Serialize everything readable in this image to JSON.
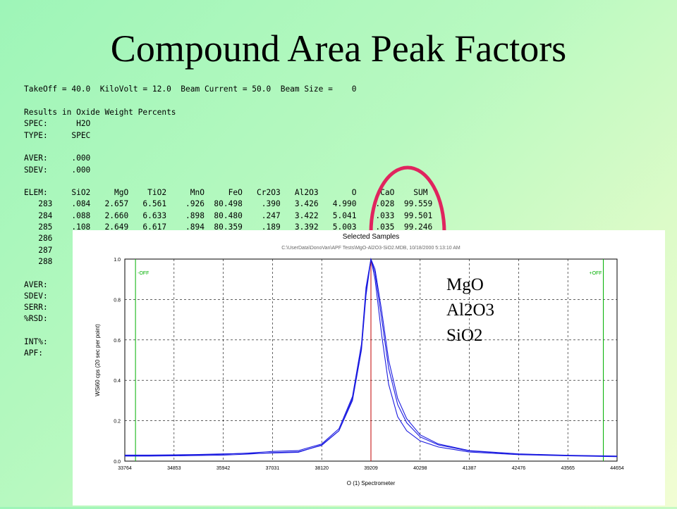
{
  "slide_title": "Compound Area Peak Factors",
  "printout": {
    "conditions": "TakeOff = 40.0  KiloVolt = 12.0  Beam Current = 50.0  Beam Size =    0",
    "lines": [
      "Results in Oxide Weight Percents",
      "SPEC:      H2O",
      "TYPE:     SPEC",
      "",
      "AVER:     .000",
      "SDEV:     .000",
      "",
      "ELEM:     SiO2     MgO    TiO2     MnO     FeO   Cr2O3   Al2O3       O     CaO    SUM",
      "   283    .084   2.657   6.561    .926  80.498    .390   3.426   4.990    .028  99.559",
      "   284    .088   2.660   6.633    .898  80.480    .247   3.422   5.041    .033  99.501",
      "   285    .108   2.649   6.617    .894  80.359    .189   3.392   5.003    .035  99.246",
      "   286",
      "   287",
      "   288",
      "",
      "AVER:",
      "SDEV:",
      "SERR:",
      "%RSD:",
      "",
      "INT%:",
      "APF:"
    ]
  },
  "legend_labels": [
    "MgO",
    "Al2O3",
    "SiO2"
  ],
  "colors": {
    "highlight_ellipse": "#e0245e",
    "curve": "#1a1ae0",
    "peak_marker": "#c00000",
    "bg_marker": "#00b000"
  },
  "chart_data": {
    "type": "line",
    "title": "Selected Samples",
    "subtitle": "C:\\UserData\\DonoVan\\APF Tests\\MgO-Al2O3-SiO2.MDB, 10/18/2000 5:13:10 AM",
    "xlabel": "O  (1) Spectrometer",
    "ylabel": "WSi60 cps (20 sec per point)",
    "xlim": [
      33764,
      44654
    ],
    "ylim": [
      0,
      1.0
    ],
    "x_ticks": [
      "33764",
      "34853",
      "35942",
      "37031",
      "38120",
      "39209",
      "40298",
      "41387",
      "42476",
      "43565",
      "44654"
    ],
    "y_ticks": [
      "0.0",
      "0.2",
      "0.4",
      "0.6",
      "0.8",
      "1.0"
    ],
    "grid": true,
    "background_marker_labels": [
      "-OFF",
      "+OFF"
    ],
    "background_markers_x": [
      34000,
      44350
    ],
    "peak_marker_x": 39209,
    "series": [
      {
        "x": [
          33764,
          34300,
          34853,
          35400,
          35942,
          36500,
          37031,
          37600,
          38120,
          38500,
          38800,
          39000,
          39100,
          39209,
          39300,
          39450,
          39600,
          39800,
          40000,
          40298,
          40700,
          41387,
          42476,
          43565,
          44654
        ],
        "values": [
          0.025,
          0.025,
          0.026,
          0.028,
          0.03,
          0.035,
          0.042,
          0.046,
          0.078,
          0.15,
          0.3,
          0.55,
          0.82,
          1.0,
          0.9,
          0.62,
          0.38,
          0.22,
          0.15,
          0.1,
          0.07,
          0.045,
          0.032,
          0.026,
          0.022
        ]
      },
      {
        "x": [
          33764,
          34300,
          34853,
          35400,
          35942,
          36500,
          37031,
          37600,
          38120,
          38500,
          38800,
          39000,
          39100,
          39209,
          39300,
          39450,
          39600,
          39800,
          40000,
          40298,
          40700,
          41387,
          42476,
          43565,
          44654
        ],
        "values": [
          0.028,
          0.028,
          0.029,
          0.031,
          0.034,
          0.04,
          0.048,
          0.052,
          0.085,
          0.16,
          0.32,
          0.58,
          0.86,
          1.0,
          0.93,
          0.7,
          0.46,
          0.28,
          0.19,
          0.12,
          0.08,
          0.05,
          0.035,
          0.028,
          0.024
        ]
      },
      {
        "x": [
          33764,
          34300,
          34853,
          35400,
          35942,
          36500,
          37031,
          37600,
          38120,
          38500,
          38800,
          39000,
          39100,
          39209,
          39300,
          39450,
          39600,
          39800,
          40000,
          40298,
          40700,
          41387,
          42476,
          43565,
          44654
        ],
        "values": [
          0.03,
          0.03,
          0.031,
          0.033,
          0.036,
          0.038,
          0.04,
          0.044,
          0.08,
          0.15,
          0.31,
          0.57,
          0.84,
          1.0,
          0.95,
          0.74,
          0.5,
          0.31,
          0.21,
          0.13,
          0.085,
          0.052,
          0.036,
          0.029,
          0.025
        ]
      }
    ]
  }
}
